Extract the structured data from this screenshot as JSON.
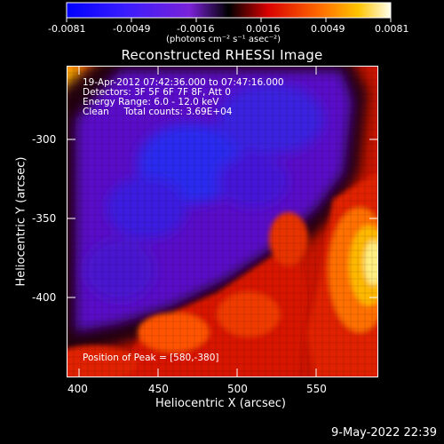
{
  "colorbar": {
    "tick_labels": [
      "-0.0081",
      "-0.0049",
      "-0.0016",
      "0.0016",
      "0.0049",
      "0.0081"
    ],
    "unit_label": "(photons cm⁻² s⁻¹ asec⁻²)"
  },
  "title": "Reconstructed RHESSI Image",
  "info": {
    "line1": "19-Apr-2012 07:42:36.000 to 07:47:16.000",
    "line2": "Detectors: 3F 5F 6F 7F 8F, Att 0",
    "line3": "Energy Range: 6.0 - 12.0 keV",
    "line4": "Clean     Total counts: 3.69E+04",
    "peak": "Position of Peak = [580,-380]"
  },
  "axes": {
    "xlabel": "Heliocentric X (arcsec)",
    "ylabel": "Heliocentric Y (arcsec)",
    "x_ticks": [
      "400",
      "450",
      "500",
      "550"
    ],
    "y_ticks": [
      "-300",
      "-350",
      "-400"
    ]
  },
  "footer": {
    "timestamp": "9-May-2022 22:39"
  }
}
